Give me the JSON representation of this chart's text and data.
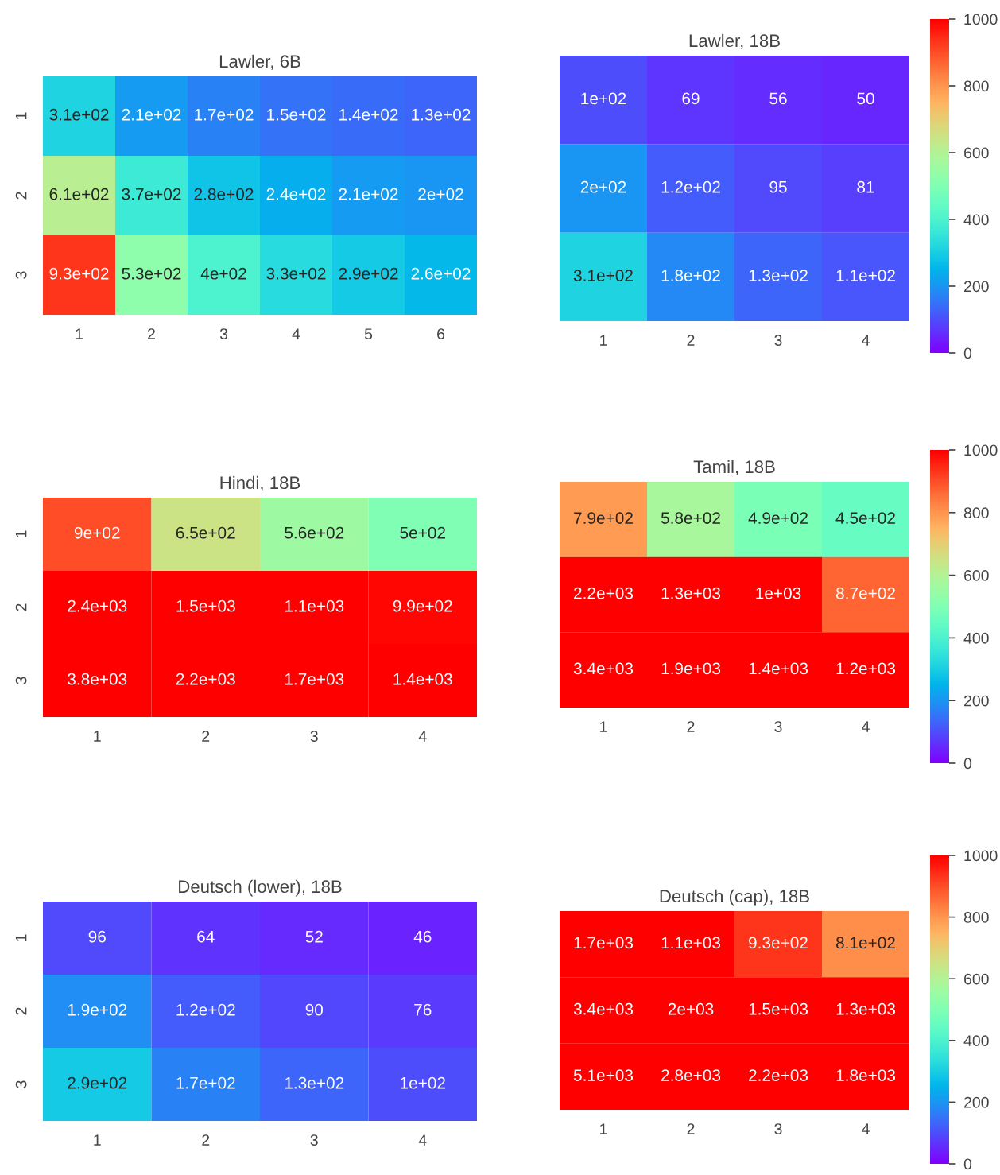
{
  "chart_data": [
    {
      "type": "heatmap",
      "title": "Lawler, 6B",
      "categories": [
        "1",
        "2",
        "3",
        "4",
        "5",
        "6"
      ],
      "y_categories": [
        "1",
        "2",
        "3"
      ],
      "cells": [
        [
          310,
          210,
          170,
          150,
          140,
          130
        ],
        [
          610,
          370,
          280,
          240,
          210,
          200
        ],
        [
          930,
          530,
          400,
          330,
          290,
          260
        ]
      ],
      "cell_labels": [
        [
          "3.1e+02",
          "2.1e+02",
          "1.7e+02",
          "1.5e+02",
          "1.4e+02",
          "1.3e+02"
        ],
        [
          "6.1e+02",
          "3.7e+02",
          "2.8e+02",
          "2.4e+02",
          "2.1e+02",
          "2e+02"
        ],
        [
          "9.3e+02",
          "5.3e+02",
          "4e+02",
          "3.3e+02",
          "2.9e+02",
          "2.6e+02"
        ]
      ]
    },
    {
      "type": "heatmap",
      "title": "Lawler, 18B",
      "categories": [
        "1",
        "2",
        "3",
        "4"
      ],
      "y_categories": [
        "1",
        "2",
        "3"
      ],
      "tick_labels": "x",
      "clim": [
        0,
        1000
      ],
      "cticks": [
        0,
        200,
        400,
        600,
        800,
        1000
      ],
      "cells": [
        [
          100,
          69,
          56,
          50
        ],
        [
          200,
          120,
          95,
          81
        ],
        [
          310,
          180,
          130,
          110
        ]
      ],
      "cell_labels": [
        [
          "1e+02",
          "69",
          "56",
          "50"
        ],
        [
          "2e+02",
          "1.2e+02",
          "95",
          "81"
        ],
        [
          "3.1e+02",
          "1.8e+02",
          "1.3e+02",
          "1.1e+02"
        ]
      ]
    },
    {
      "type": "heatmap",
      "title": "Hindi, 18B",
      "categories": [
        "1",
        "2",
        "3",
        "4"
      ],
      "y_categories": [
        "1",
        "2",
        "3"
      ],
      "cells": [
        [
          900,
          650,
          560,
          500
        ],
        [
          2400,
          1500,
          1100,
          990
        ],
        [
          3800,
          2200,
          1700,
          1400
        ]
      ],
      "cell_labels": [
        [
          "9e+02",
          "6.5e+02",
          "5.6e+02",
          "5e+02"
        ],
        [
          "2.4e+03",
          "1.5e+03",
          "1.1e+03",
          "9.9e+02"
        ],
        [
          "3.8e+03",
          "2.2e+03",
          "1.7e+03",
          "1.4e+03"
        ]
      ]
    },
    {
      "type": "heatmap",
      "title": "Tamil, 18B",
      "categories": [
        "1",
        "2",
        "3",
        "4"
      ],
      "y_categories": [
        "1",
        "2",
        "3"
      ],
      "tick_labels": "x",
      "clim": [
        0,
        1000
      ],
      "cticks": [
        0,
        200,
        400,
        600,
        800,
        1000
      ],
      "cells": [
        [
          790,
          580,
          490,
          450
        ],
        [
          2200,
          1300,
          1000,
          870
        ],
        [
          3400,
          1900,
          1400,
          1200
        ]
      ],
      "cell_labels": [
        [
          "7.9e+02",
          "5.8e+02",
          "4.9e+02",
          "4.5e+02"
        ],
        [
          "2.2e+03",
          "1.3e+03",
          "1e+03",
          "8.7e+02"
        ],
        [
          "3.4e+03",
          "1.9e+03",
          "1.4e+03",
          "1.2e+03"
        ]
      ]
    },
    {
      "type": "heatmap",
      "title": "Deutsch (lower), 18B",
      "categories": [
        "1",
        "2",
        "3",
        "4"
      ],
      "y_categories": [
        "1",
        "2",
        "3"
      ],
      "cells": [
        [
          96,
          64,
          52,
          46
        ],
        [
          190,
          120,
          90,
          76
        ],
        [
          290,
          170,
          130,
          100
        ]
      ],
      "cell_labels": [
        [
          "96",
          "64",
          "52",
          "46"
        ],
        [
          "1.9e+02",
          "1.2e+02",
          "90",
          "76"
        ],
        [
          "2.9e+02",
          "1.7e+02",
          "1.3e+02",
          "1e+02"
        ]
      ]
    },
    {
      "type": "heatmap",
      "title": "Deutsch (cap), 18B",
      "categories": [
        "1",
        "2",
        "3",
        "4"
      ],
      "y_categories": [
        "1",
        "2",
        "3"
      ],
      "tick_labels": "x",
      "clim": [
        0,
        1000
      ],
      "cticks": [
        0,
        200,
        400,
        600,
        800,
        1000
      ],
      "cells": [
        [
          1700,
          1100,
          930,
          810
        ],
        [
          3400,
          2000,
          1500,
          1300
        ],
        [
          5100,
          2800,
          2200,
          1800
        ]
      ],
      "cell_labels": [
        [
          "1.7e+03",
          "1.1e+03",
          "9.3e+02",
          "8.1e+02"
        ],
        [
          "3.4e+03",
          "2e+03",
          "1.5e+03",
          "1.3e+03"
        ],
        [
          "5.1e+03",
          "2.8e+03",
          "2.2e+03",
          "1.8e+03"
        ]
      ]
    }
  ]
}
